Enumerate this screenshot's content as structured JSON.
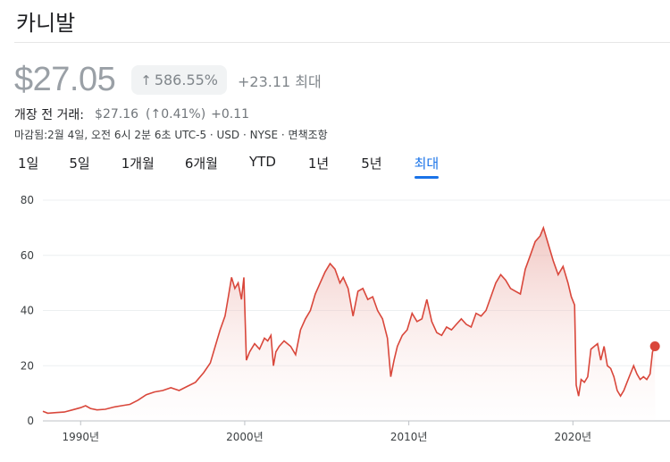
{
  "header": {
    "title": "카니발",
    "price": "$27.05",
    "pct_change": "586.55%",
    "abs_change": "+23.11 최대",
    "premarket_label": "개장 전 거래:",
    "premarket_price": "$27.16",
    "premarket_pct": "(↑0.41%)",
    "premarket_change": "+0.11",
    "meta": "마감됨:2월 4일, 오전 6시 2분 6초 UTC-5 · USD · NYSE · 면책조항",
    "accent_color": "#1a73e8",
    "line_color": "#d9473b"
  },
  "tabs": [
    {
      "label": "1일",
      "active": false
    },
    {
      "label": "5일",
      "active": false
    },
    {
      "label": "1개월",
      "active": false
    },
    {
      "label": "6개월",
      "active": false
    },
    {
      "label": "YTD",
      "active": false
    },
    {
      "label": "1년",
      "active": false
    },
    {
      "label": "5년",
      "active": false
    },
    {
      "label": "최대",
      "active": true
    }
  ],
  "chart_data": {
    "type": "area",
    "title": "",
    "xlabel": "",
    "ylabel": "",
    "ylim": [
      0,
      80
    ],
    "xlim": [
      1987.7,
      2025.1
    ],
    "y_ticks": [
      "0",
      "20",
      "40",
      "60",
      "80"
    ],
    "x_ticks": [
      {
        "value": 1990,
        "label": "1990년"
      },
      {
        "value": 2000,
        "label": "2000년"
      },
      {
        "value": 2010,
        "label": "2010년"
      },
      {
        "value": 2020,
        "label": "2020년"
      }
    ],
    "grid": true,
    "series": [
      {
        "x": [
          1987.7,
          1988.0,
          1988.5,
          1989.0,
          1989.5,
          1990.0,
          1990.3,
          1990.6,
          1991.0,
          1991.5,
          1992.0,
          1992.5,
          1993.0,
          1993.5,
          1994.0,
          1994.5,
          1995.0,
          1995.5,
          1996.0,
          1996.5,
          1997.0,
          1997.5,
          1997.9,
          1998.2,
          1998.5,
          1998.8,
          1999.0,
          1999.2,
          1999.4,
          1999.6,
          1999.8,
          1999.95,
          2000.1,
          2000.3,
          2000.6,
          2000.9,
          2001.2,
          2001.4,
          2001.6,
          2001.75,
          2001.9,
          2002.1,
          2002.4,
          2002.8,
          2003.1,
          2003.4,
          2003.7,
          2004.0,
          2004.3,
          2004.6,
          2004.9,
          2005.2,
          2005.5,
          2005.8,
          2006.0,
          2006.3,
          2006.6,
          2006.9,
          2007.2,
          2007.5,
          2007.8,
          2008.1,
          2008.4,
          2008.7,
          2008.9,
          2009.1,
          2009.3,
          2009.6,
          2009.9,
          2010.2,
          2010.5,
          2010.8,
          2011.1,
          2011.4,
          2011.7,
          2012.0,
          2012.3,
          2012.6,
          2012.9,
          2013.2,
          2013.5,
          2013.8,
          2014.1,
          2014.4,
          2014.7,
          2015.0,
          2015.3,
          2015.6,
          2015.9,
          2016.2,
          2016.5,
          2016.8,
          2017.1,
          2017.4,
          2017.7,
          2018.0,
          2018.2,
          2018.5,
          2018.8,
          2019.1,
          2019.4,
          2019.7,
          2019.9,
          2020.1,
          2020.2,
          2020.35,
          2020.5,
          2020.7,
          2020.9,
          2021.1,
          2021.3,
          2021.5,
          2021.7,
          2021.9,
          2022.1,
          2022.3,
          2022.5,
          2022.7,
          2022.9,
          2023.1,
          2023.3,
          2023.5,
          2023.7,
          2023.9,
          2024.1,
          2024.3,
          2024.5,
          2024.7,
          2024.85,
          2025.0
        ],
        "values": [
          3.5,
          2.8,
          3.0,
          3.2,
          4.0,
          4.8,
          5.5,
          4.5,
          4.0,
          4.2,
          5.0,
          5.5,
          6.0,
          7.5,
          9.5,
          10.5,
          11.0,
          12.0,
          11.0,
          12.5,
          14.0,
          17.5,
          21.0,
          27.0,
          33.0,
          38.0,
          45.0,
          52.0,
          48.0,
          50.0,
          44.0,
          52.0,
          22.0,
          25.0,
          28.0,
          26.0,
          30.0,
          29.0,
          31.0,
          20.0,
          25.0,
          27.0,
          29.0,
          27.0,
          24.0,
          33.0,
          37.0,
          40.0,
          46.0,
          50.0,
          54.0,
          57.0,
          55.0,
          50.0,
          52.0,
          48.0,
          38.0,
          47.0,
          48.0,
          44.0,
          45.0,
          40.0,
          37.0,
          30.0,
          16.0,
          22.0,
          27.0,
          31.0,
          33.0,
          39.0,
          36.0,
          37.0,
          44.0,
          36.0,
          32.0,
          31.0,
          34.0,
          33.0,
          35.0,
          37.0,
          35.0,
          34.0,
          39.0,
          38.0,
          40.0,
          45.0,
          50.0,
          53.0,
          51.0,
          48.0,
          47.0,
          46.0,
          55.0,
          60.0,
          65.0,
          67.0,
          70.0,
          64.0,
          58.0,
          53.0,
          56.0,
          50.0,
          45.0,
          42.0,
          13.0,
          9.0,
          15.0,
          14.0,
          16.0,
          26.0,
          27.0,
          28.0,
          22.0,
          27.0,
          20.0,
          19.0,
          16.0,
          11.0,
          9.0,
          11.0,
          14.0,
          17.0,
          20.0,
          17.0,
          15.0,
          16.0,
          15.0,
          17.0,
          25.0,
          27.05
        ]
      }
    ]
  }
}
